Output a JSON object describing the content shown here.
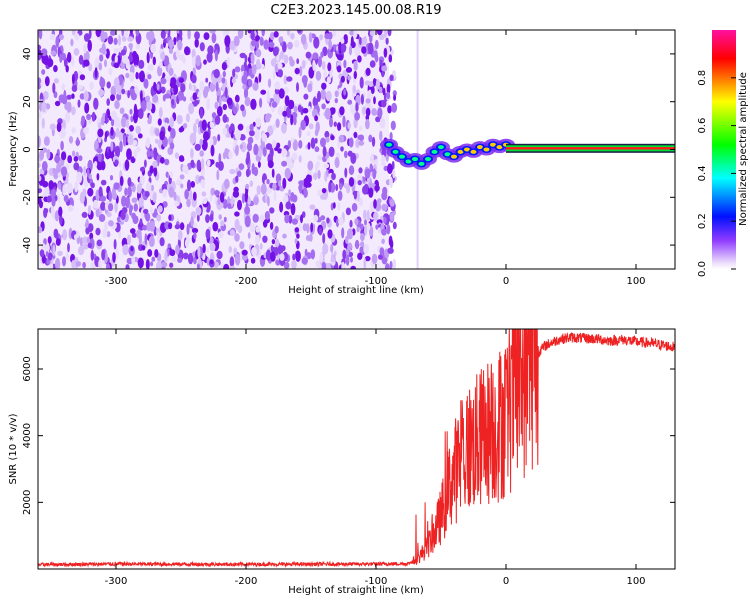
{
  "figure": {
    "title": "C2E3.2023.145.00.08.R19"
  },
  "chart_data": [
    {
      "type": "heatmap",
      "xlabel": "Height of straight line (km)",
      "ylabel": "Frequency (Hz)",
      "xlim": [
        -360,
        130
      ],
      "ylim": [
        -50,
        50
      ],
      "x_ticks": [
        -300,
        -200,
        -100,
        0,
        100
      ],
      "y_ticks": [
        -40,
        -20,
        0,
        20,
        40
      ],
      "noise_region_x": [
        -360,
        -90
      ],
      "signal_trace": {
        "x": [
          -90,
          -85,
          -80,
          -75,
          -70,
          -65,
          -60,
          -55,
          -50,
          -45,
          -40,
          -35,
          -30,
          -25,
          -20,
          -15,
          -10,
          -5,
          0,
          5,
          130
        ],
        "frequency": [
          2,
          -1,
          -3,
          -5,
          -4,
          -6,
          -4,
          -1,
          1,
          -2,
          -3,
          -1,
          0,
          -1,
          1,
          0,
          2,
          1,
          2,
          0.5,
          0.5
        ]
      },
      "colorbar": {
        "label": "Normalized spectral amplitude",
        "ticks": [
          0.0,
          0.2,
          0.4,
          0.6,
          0.8
        ],
        "range": [
          0,
          1
        ],
        "colors": [
          "#f4ecfc",
          "#8f3bff",
          "#0010ff",
          "#00ffff",
          "#00ff00",
          "#ffff00",
          "#ff0000",
          "#ff10a0"
        ]
      }
    },
    {
      "type": "line",
      "xlabel": "Height of straight line (km)",
      "ylabel": "SNR (10 * v/v)",
      "xlim": [
        -360,
        130
      ],
      "ylim": [
        0,
        7200
      ],
      "x_ticks": [
        -300,
        -200,
        -100,
        0,
        100
      ],
      "y_ticks": [
        2000,
        4000,
        6000
      ],
      "color": "#ee2222",
      "series": [
        {
          "name": "SNR",
          "x": [
            -360,
            -300,
            -200,
            -100,
            -75,
            -68,
            -60,
            -55,
            -50,
            -45,
            -40,
            -35,
            -30,
            -25,
            -20,
            -15,
            -10,
            -5,
            0,
            5,
            10,
            15,
            20,
            25,
            30,
            40,
            50,
            60,
            70,
            80,
            90,
            100,
            110,
            120,
            130
          ],
          "values": [
            130,
            150,
            140,
            150,
            160,
            300,
            700,
            1100,
            1600,
            2300,
            2900,
            3200,
            3600,
            3700,
            3900,
            4100,
            4200,
            4350,
            4600,
            5100,
            5600,
            6000,
            6300,
            6500,
            6700,
            6880,
            6950,
            6920,
            6900,
            6850,
            6880,
            6820,
            6780,
            6720,
            6650
          ]
        }
      ]
    }
  ]
}
